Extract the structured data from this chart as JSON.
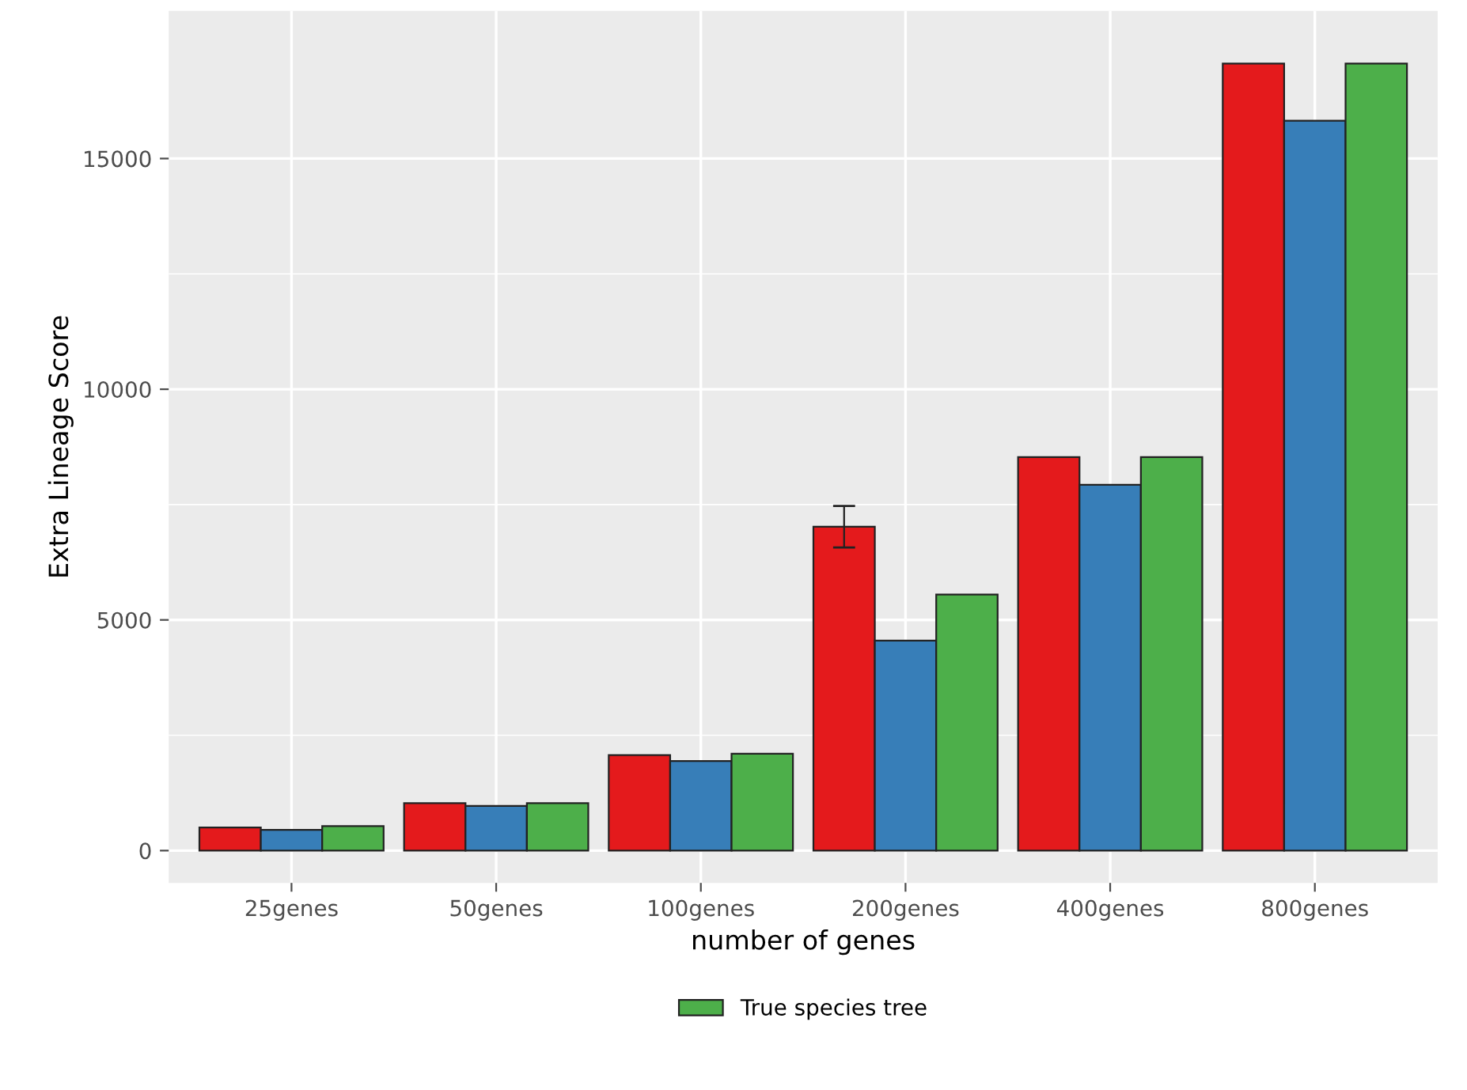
{
  "chart_data": {
    "type": "bar",
    "xlabel": "number of genes",
    "ylabel": "Extra Lineage Score",
    "categories": [
      "25genes",
      "50genes",
      "100genes",
      "200genes",
      "400genes",
      "800genes"
    ],
    "series": [
      {
        "color": "#e41a1c",
        "values": [
          500,
          1030,
          2070,
          7020,
          8530,
          17060
        ],
        "errors": [
          null,
          null,
          null,
          450,
          null,
          null
        ]
      },
      {
        "color": "#377eb8",
        "values": [
          450,
          970,
          1940,
          4550,
          7930,
          15820
        ]
      },
      {
        "name": "True species tree",
        "color": "#4daf4a",
        "values": [
          530,
          1030,
          2100,
          5550,
          8530,
          17060
        ]
      }
    ],
    "ylim": [
      -700,
      18200
    ],
    "yticks": [
      0,
      5000,
      10000,
      15000
    ],
    "grid": true,
    "legend": "bottom"
  }
}
